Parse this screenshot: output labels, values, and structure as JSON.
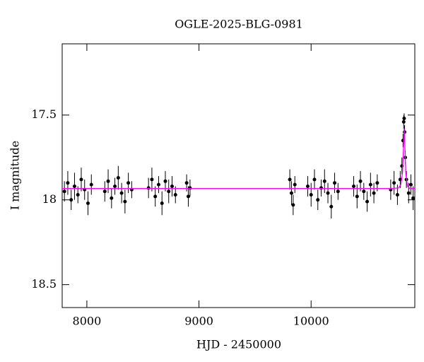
{
  "chart_data": {
    "type": "scatter",
    "title": "OGLE-2025-BLG-0981",
    "xlabel": "HJD - 2450000",
    "ylabel": "I magnitude",
    "xlim": [
      7780,
      10925
    ],
    "ylim": [
      17.08,
      18.635
    ],
    "y_inverted": true,
    "xticks": [
      8000,
      9000,
      10000
    ],
    "yticks": [
      17.5,
      18,
      18.5
    ],
    "series": [
      {
        "style": "points",
        "color": "#000000",
        "x": [
          7800,
          7830,
          7860,
          7890,
          7920,
          7950,
          7980,
          8010,
          8040,
          8160,
          8190,
          8220,
          8250,
          8280,
          8310,
          8340,
          8370,
          8400,
          8550,
          8580,
          8610,
          8640,
          8670,
          8700,
          8730,
          8760,
          8790,
          8890,
          8905,
          8920,
          9810,
          9825,
          9840,
          9855,
          9970,
          10000,
          10030,
          10060,
          10090,
          10120,
          10150,
          10180,
          10210,
          10240,
          10380,
          10410,
          10440,
          10470,
          10500,
          10530,
          10560,
          10590,
          10710,
          10740,
          10770,
          10795,
          10810,
          10820,
          10826,
          10830,
          10834,
          10840,
          10850,
          10870,
          10890,
          10910
        ],
        "values": [
          17.95,
          17.9,
          18.0,
          17.92,
          17.97,
          17.88,
          17.94,
          18.02,
          17.91,
          17.95,
          17.89,
          17.99,
          17.92,
          17.87,
          17.96,
          18.01,
          17.9,
          17.94,
          17.93,
          17.88,
          17.98,
          17.91,
          18.02,
          17.89,
          17.95,
          17.92,
          17.97,
          17.9,
          17.98,
          17.93,
          17.88,
          17.96,
          18.03,
          17.91,
          17.92,
          17.97,
          17.88,
          18.0,
          17.93,
          17.89,
          17.96,
          18.04,
          17.9,
          17.95,
          17.92,
          17.98,
          17.89,
          17.95,
          18.01,
          17.91,
          17.96,
          17.9,
          17.94,
          17.9,
          17.97,
          17.88,
          17.8,
          17.65,
          17.54,
          17.52,
          17.6,
          17.75,
          17.88,
          17.96,
          17.91,
          17.99
        ],
        "errors": [
          0.06,
          0.07,
          0.06,
          0.08,
          0.05,
          0.07,
          0.06,
          0.07,
          0.06,
          0.06,
          0.07,
          0.06,
          0.05,
          0.07,
          0.06,
          0.07,
          0.06,
          0.05,
          0.06,
          0.07,
          0.06,
          0.05,
          0.07,
          0.06,
          0.07,
          0.06,
          0.05,
          0.05,
          0.06,
          0.05,
          0.06,
          0.07,
          0.06,
          0.05,
          0.06,
          0.07,
          0.06,
          0.06,
          0.05,
          0.07,
          0.06,
          0.07,
          0.06,
          0.05,
          0.06,
          0.07,
          0.06,
          0.05,
          0.06,
          0.07,
          0.06,
          0.05,
          0.06,
          0.07,
          0.06,
          0.05,
          0.05,
          0.04,
          0.04,
          0.03,
          0.04,
          0.04,
          0.05,
          0.06,
          0.06,
          0.07
        ]
      },
      {
        "style": "line",
        "color": "#ff00ff",
        "x": [
          7780,
          10700,
          10780,
          10800,
          10815,
          10825,
          10830,
          10835,
          10845,
          10860,
          10880,
          10925
        ],
        "values": [
          17.933,
          17.933,
          17.93,
          17.91,
          17.84,
          17.68,
          17.58,
          17.66,
          17.85,
          17.92,
          17.932,
          17.933
        ]
      }
    ]
  }
}
